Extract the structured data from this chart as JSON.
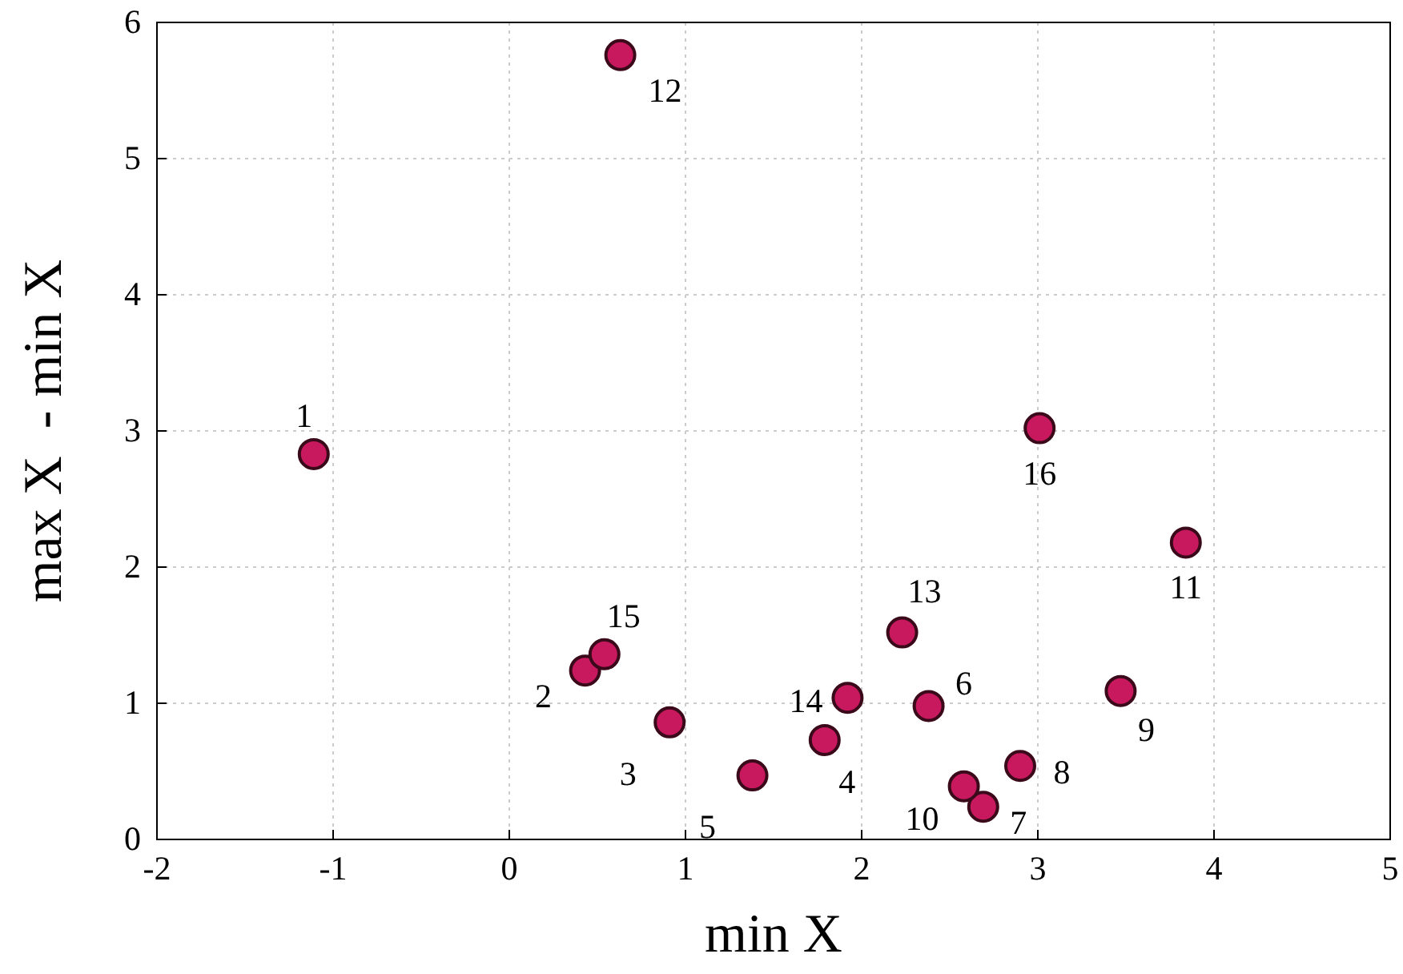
{
  "chart_data": {
    "type": "scatter",
    "xlabel": "min X",
    "ylabel": "max X  - min X",
    "x": [
      -1.11,
      0.43,
      0.91,
      1.79,
      1.38,
      2.38,
      2.69,
      2.9,
      3.47,
      2.58,
      3.84,
      0.63,
      2.23,
      1.92,
      0.54,
      3.01
    ],
    "values": [
      2.83,
      1.24,
      0.86,
      0.73,
      0.47,
      0.98,
      0.24,
      0.54,
      1.09,
      0.39,
      2.18,
      5.76,
      1.52,
      1.04,
      1.36,
      3.02
    ],
    "color": "#c8185e",
    "marker": "circle",
    "xlim": [
      -2,
      5
    ],
    "xticks": [
      -2,
      -1,
      0,
      1,
      2,
      3,
      4,
      5
    ],
    "ylim": [
      0,
      6
    ],
    "yticks": [
      0,
      1,
      2,
      3,
      4,
      5,
      6
    ],
    "grid": true,
    "annotations": [
      {
        "text": "1",
        "x": -1.11,
        "y": 2.83
      },
      {
        "text": "2",
        "x": 0.43,
        "y": 1.24
      },
      {
        "text": "3",
        "x": 0.91,
        "y": 0.86
      },
      {
        "text": "4",
        "x": 1.79,
        "y": 0.73
      },
      {
        "text": "5",
        "x": 1.38,
        "y": 0.47
      },
      {
        "text": "6",
        "x": 2.38,
        "y": 0.98
      },
      {
        "text": "7",
        "x": 2.69,
        "y": 0.24
      },
      {
        "text": "8",
        "x": 2.9,
        "y": 0.54
      },
      {
        "text": "9",
        "x": 3.47,
        "y": 1.09
      },
      {
        "text": "10",
        "x": 2.58,
        "y": 0.39
      },
      {
        "text": "11",
        "x": 3.84,
        "y": 2.18
      },
      {
        "text": "12",
        "x": 0.63,
        "y": 5.76
      },
      {
        "text": "13",
        "x": 2.23,
        "y": 1.52
      },
      {
        "text": "14",
        "x": 1.92,
        "y": 1.04
      },
      {
        "text": "15",
        "x": 0.54,
        "y": 1.36
      },
      {
        "text": "16",
        "x": 3.01,
        "y": 3.02
      }
    ]
  }
}
